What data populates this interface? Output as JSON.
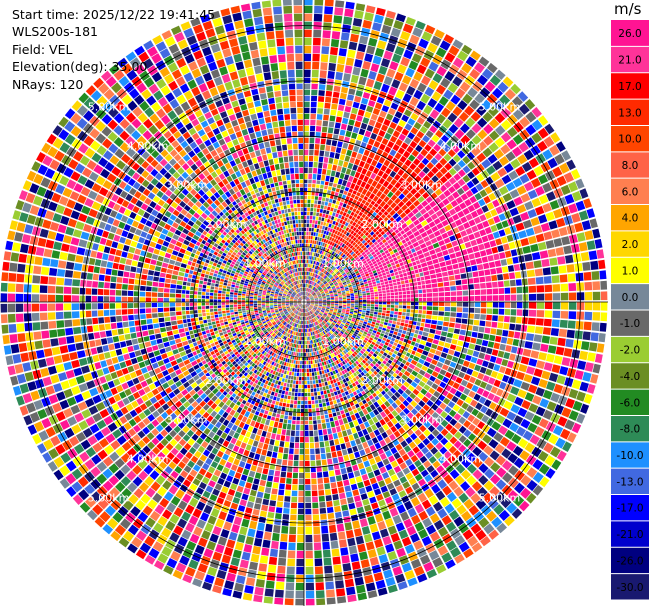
{
  "header": {
    "start_time": "Start time: 2025/12/22 19:41:45",
    "instrument": "WLS200s-181",
    "field": "Field: VEL",
    "elevation": "Elevation(deg): 35.00",
    "nrays": "NRays: 120"
  },
  "chart_data": {
    "type": "heatmap",
    "projection": "polar-ppi",
    "field": "VEL",
    "units": "m/s",
    "n_rays": 120,
    "range_rings_km": [
      1,
      2,
      3,
      4,
      5
    ],
    "ring_labels": [
      "1.00km",
      "2.00km",
      "3.00km",
      "4.00km",
      "5.00km"
    ],
    "max_range_km": 5.5,
    "colorbar": {
      "title": "m/s",
      "vmin": -30.0,
      "vmax": 26.0,
      "ticks": [
        "26.0",
        "21.0",
        "17.0",
        "13.0",
        "10.0",
        "8.0",
        "6.0",
        "4.0",
        "2.0",
        "1.0",
        "0.0",
        "-1.0",
        "-2.0",
        "-4.0",
        "-6.0",
        "-8.0",
        "-10.0",
        "-13.0",
        "-17.0",
        "-21.0",
        "-26.0",
        "-30.0"
      ],
      "colors": [
        "#ff1493",
        "#ff3399",
        "#ff0000",
        "#ff2a00",
        "#ff4500",
        "#ff6347",
        "#ff7f50",
        "#ffa500",
        "#ffd700",
        "#ffff00",
        "#778899",
        "#696969",
        "#9acd32",
        "#6b8e23",
        "#228b22",
        "#2e8b57",
        "#1e90ff",
        "#4169e1",
        "#0000ff",
        "#0000cd",
        "#000080",
        "#191970"
      ]
    }
  }
}
